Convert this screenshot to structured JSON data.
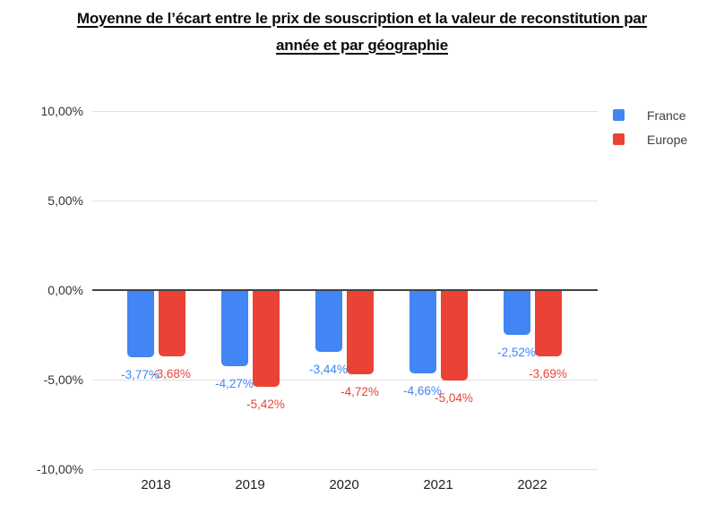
{
  "header": {
    "title_line1": "Moyenne de l’écart entre le prix de souscription et la valeur de reconstitution par",
    "title_line2": "année et par géographie"
  },
  "chart_data": {
    "type": "bar",
    "title": "Moyenne de l’écart entre le prix de souscription et la valeur de reconstitution par année et par géographie",
    "categories": [
      "2018",
      "2019",
      "2020",
      "2021",
      "2022"
    ],
    "series": [
      {
        "name": "France",
        "color": "#4285F4",
        "values": [
          -3.77,
          -4.27,
          -3.44,
          -4.66,
          -2.52
        ],
        "labels": [
          "-3,77%",
          "-4,27%",
          "-3,44%",
          "-4,66%",
          "-2,52%"
        ]
      },
      {
        "name": "Europe",
        "color": "#EA4335",
        "values": [
          -3.68,
          -5.42,
          -4.72,
          -5.04,
          -3.69
        ],
        "labels": [
          "-3,68%",
          "-5,42%",
          "-4,72%",
          "-5,04%",
          "-3,69%"
        ]
      }
    ],
    "yticks": [
      {
        "value": 10,
        "label": "10,00%"
      },
      {
        "value": 5,
        "label": "5,00%"
      },
      {
        "value": 0,
        "label": "0,00%"
      },
      {
        "value": -5,
        "label": "-5,00%"
      },
      {
        "value": -10,
        "label": "-10,00%"
      }
    ],
    "ylim": [
      -10,
      10
    ],
    "grid": true,
    "legend_position": "right-top",
    "gridline_color": "#e0e0e0",
    "zero_line_color": "#424242",
    "axis_label_color": "#333333"
  }
}
